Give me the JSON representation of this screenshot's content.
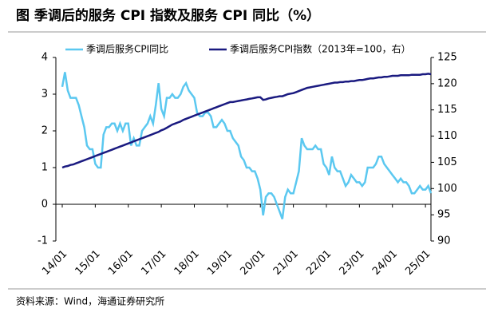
{
  "chart_data": {
    "type": "line",
    "title": "图  季调后的服务 CPI 指数及服务 CPI 同比（%）",
    "source": "资料来源：Wind，海通证券研究所",
    "categories": [
      "14/01",
      null,
      null,
      null,
      null,
      null,
      null,
      null,
      null,
      null,
      null,
      null,
      "15/01",
      null,
      null,
      null,
      null,
      null,
      null,
      null,
      null,
      null,
      null,
      null,
      "16/01",
      null,
      null,
      null,
      null,
      null,
      null,
      null,
      null,
      null,
      null,
      null,
      "17/01",
      null,
      null,
      null,
      null,
      null,
      null,
      null,
      null,
      null,
      null,
      null,
      "18/01",
      null,
      null,
      null,
      null,
      null,
      null,
      null,
      null,
      null,
      null,
      null,
      "19/01",
      null,
      null,
      null,
      null,
      null,
      null,
      null,
      null,
      null,
      null,
      null,
      "20/01",
      null,
      null,
      null,
      null,
      null,
      null,
      null,
      null,
      null,
      null,
      null,
      "21/01",
      null,
      null,
      null,
      null,
      null,
      null,
      null,
      null,
      null,
      null,
      null,
      "22/01",
      null,
      null,
      null,
      null,
      null,
      null,
      null,
      null,
      null,
      null,
      null,
      "23/01",
      null,
      null,
      null,
      null,
      null,
      null,
      null,
      null,
      null,
      null,
      null,
      "24/01",
      null,
      null,
      null,
      null,
      null,
      null,
      null,
      null,
      null,
      null,
      null,
      "25/01",
      null,
      null
    ],
    "series": [
      {
        "name": "季调后服务CPI同比",
        "color": "#5bc8f0",
        "axis": "y",
        "values": [
          3.2,
          3.6,
          3.1,
          2.9,
          2.9,
          2.9,
          2.7,
          2.4,
          2.1,
          1.6,
          1.5,
          1.5,
          1.1,
          1.0,
          1.0,
          1.9,
          2.1,
          2.1,
          2.2,
          2.2,
          2.0,
          2.2,
          2.0,
          2.2,
          2.2,
          1.6,
          1.8,
          1.6,
          1.6,
          2.0,
          2.1,
          2.2,
          2.4,
          2.2,
          2.7,
          3.3,
          2.6,
          2.4,
          2.9,
          2.9,
          3.0,
          2.9,
          2.9,
          3.0,
          3.2,
          3.3,
          3.1,
          3.0,
          2.9,
          2.5,
          2.4,
          2.4,
          2.5,
          2.5,
          2.4,
          2.1,
          2.1,
          2.2,
          2.3,
          2.2,
          2.0,
          2.0,
          1.8,
          1.7,
          1.6,
          1.3,
          1.2,
          1.0,
          1.0,
          0.9,
          0.9,
          0.7,
          0.4,
          -0.3,
          0.2,
          0.3,
          0.3,
          0.2,
          0.0,
          -0.2,
          -0.4,
          0.2,
          0.4,
          0.3,
          0.3,
          0.6,
          0.9,
          1.8,
          1.6,
          1.5,
          1.5,
          1.5,
          1.6,
          1.5,
          1.5,
          1.1,
          1.0,
          0.8,
          1.3,
          1.0,
          0.9,
          0.9,
          0.7,
          0.5,
          0.6,
          0.8,
          0.7,
          0.6,
          0.6,
          0.5,
          0.6,
          1.0,
          1.0,
          1.0,
          1.1,
          1.3,
          1.3,
          1.1,
          1.0,
          0.9,
          0.8,
          0.7,
          0.6,
          0.7,
          0.6,
          0.6,
          0.5,
          0.3,
          0.3,
          0.4,
          0.5,
          0.4,
          0.4,
          0.5,
          0.3
        ]
      },
      {
        "name": "季调后服务CPI指数（2013年=100，右）",
        "color": "#1a1a80",
        "axis": "y2",
        "values": [
          104.0,
          104.2,
          104.3,
          104.5,
          104.6,
          104.8,
          105.0,
          105.2,
          105.4,
          105.6,
          105.8,
          106.0,
          106.2,
          106.4,
          106.6,
          106.8,
          107.0,
          107.2,
          107.4,
          107.6,
          107.8,
          108.0,
          108.2,
          108.4,
          108.6,
          108.8,
          109.0,
          109.2,
          109.4,
          109.6,
          109.8,
          110.0,
          110.2,
          110.4,
          110.6,
          110.8,
          111.1,
          111.3,
          111.6,
          111.9,
          112.2,
          112.4,
          112.6,
          112.8,
          113.1,
          113.3,
          113.5,
          113.7,
          113.9,
          114.1,
          114.3,
          114.5,
          114.7,
          114.9,
          115.1,
          115.3,
          115.5,
          115.7,
          115.9,
          116.1,
          116.3,
          116.5,
          116.5,
          116.6,
          116.7,
          116.8,
          116.9,
          117.0,
          117.1,
          117.2,
          117.3,
          117.4,
          117.4,
          116.9,
          117.0,
          117.2,
          117.3,
          117.4,
          117.5,
          117.6,
          117.6,
          117.8,
          118.0,
          118.1,
          118.2,
          118.4,
          118.6,
          118.8,
          119.0,
          119.2,
          119.3,
          119.4,
          119.5,
          119.6,
          119.7,
          119.8,
          119.9,
          120.0,
          120.1,
          120.2,
          120.2,
          120.3,
          120.3,
          120.4,
          120.4,
          120.5,
          120.5,
          120.6,
          120.7,
          120.7,
          120.8,
          120.9,
          121.0,
          121.0,
          121.1,
          121.2,
          121.2,
          121.3,
          121.3,
          121.4,
          121.5,
          121.5,
          121.5,
          121.6,
          121.6,
          121.6,
          121.6,
          121.7,
          121.7,
          121.7,
          121.7,
          121.8,
          121.8,
          121.9,
          121.8
        ]
      }
    ],
    "ylim": [
      -1,
      4
    ],
    "yticks": [
      -1,
      0,
      1,
      2,
      3,
      4
    ],
    "y2lim": [
      90,
      125
    ],
    "y2ticks": [
      90,
      95,
      100,
      105,
      110,
      115,
      120,
      125
    ],
    "grid": false,
    "legend": "top"
  }
}
